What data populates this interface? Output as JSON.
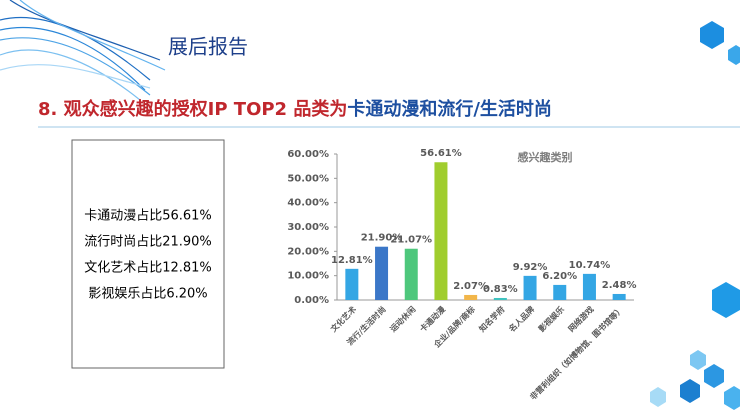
{
  "header": {
    "title": "展后报告"
  },
  "headline": {
    "parts": [
      "8. 观众感兴趣的授权IP TOP2 品类为",
      "卡通动漫和流行/生活时尚"
    ]
  },
  "summary": {
    "lines": [
      "卡通动漫占比56.61%",
      "流行时尚占比21.90%",
      "文化艺术占比12.81%",
      "影视娱乐占比6.20%"
    ]
  },
  "chart_data": {
    "type": "bar",
    "title": "感兴趣类别",
    "categories": [
      "文化艺术",
      "流行/生活时尚",
      "运动休闲",
      "卡通动漫",
      "企业/品牌/商标",
      "知名学府",
      "名人品牌",
      "影视娱乐",
      "网络游戏",
      "非营利组织（如博物馆、图书馆等）"
    ],
    "values": [
      12.81,
      21.9,
      21.07,
      56.61,
      2.07,
      0.83,
      9.92,
      6.2,
      10.74,
      2.48
    ],
    "value_labels": [
      "12.81%",
      "21.90%",
      "21.07%",
      "56.61%",
      "2.07%",
      "0.83%",
      "9.92%",
      "6.20%",
      "10.74%",
      "2.48%"
    ],
    "colors": [
      "#34a6e4",
      "#3b77c8",
      "#4ec77c",
      "#a0cd2e",
      "#f2b64a",
      "#3fc3c0",
      "#34a6e4",
      "#34a6e4",
      "#34a6e4",
      "#34a6e4"
    ],
    "ylim": [
      0,
      60
    ],
    "yticks": [
      {
        "value": 0,
        "label": "0.00%"
      },
      {
        "value": 10,
        "label": "10.00%"
      },
      {
        "value": 20,
        "label": "20.00%"
      },
      {
        "value": 30,
        "label": "30.00%"
      },
      {
        "value": 40,
        "label": "40.00%"
      },
      {
        "value": 50,
        "label": "50.00%"
      },
      {
        "value": 60,
        "label": "60.00%"
      }
    ],
    "grid": false
  }
}
